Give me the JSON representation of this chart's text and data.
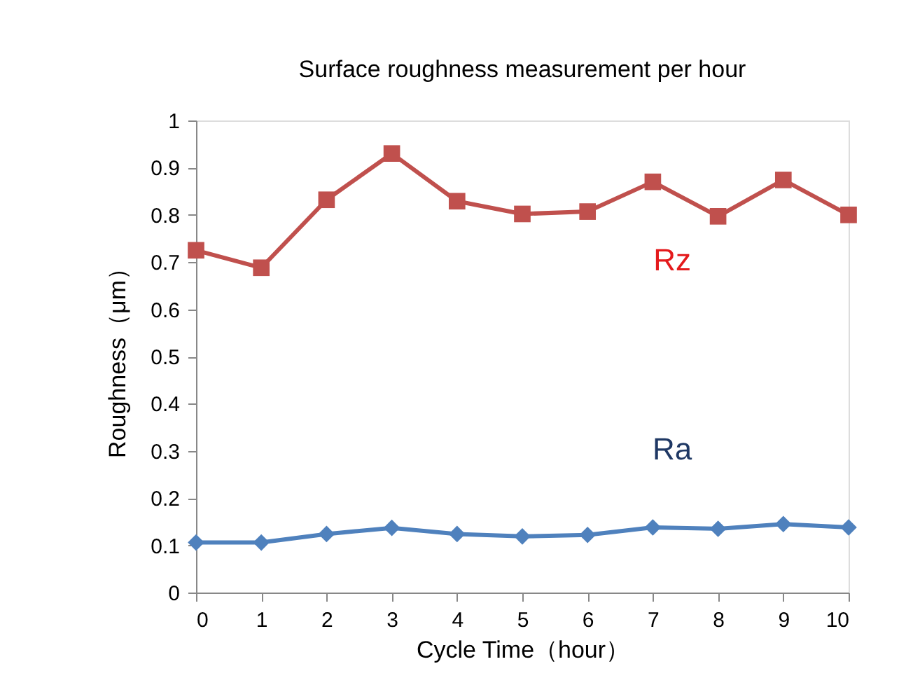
{
  "chart_data": {
    "type": "line",
    "title": "Surface roughness measurement per hour",
    "xlabel": "Cycle Time（hour）",
    "ylabel": "Roughness（μm）",
    "x": [
      0,
      1,
      2,
      3,
      4,
      5,
      6,
      7,
      8,
      9,
      10
    ],
    "series": [
      {
        "name": "Rz",
        "color": "#c0504d",
        "marker": "square",
        "values": [
          0.725,
          0.688,
          0.832,
          0.93,
          0.829,
          0.802,
          0.807,
          0.87,
          0.797,
          0.874,
          0.8
        ]
      },
      {
        "name": "Ra",
        "color": "#4f81bd",
        "marker": "diamond",
        "values": [
          0.106,
          0.106,
          0.124,
          0.137,
          0.124,
          0.119,
          0.122,
          0.138,
          0.135,
          0.145,
          0.138
        ]
      }
    ],
    "xlim": [
      0,
      10
    ],
    "xticks": [
      0,
      1,
      2,
      3,
      4,
      5,
      6,
      7,
      8,
      9,
      10
    ],
    "ylim": [
      0,
      1
    ],
    "yticks": [
      0,
      0.1,
      0.2,
      0.3,
      0.4,
      0.5,
      0.6,
      0.7,
      0.8,
      0.9,
      1
    ],
    "grid": false,
    "line_style": "solid"
  }
}
